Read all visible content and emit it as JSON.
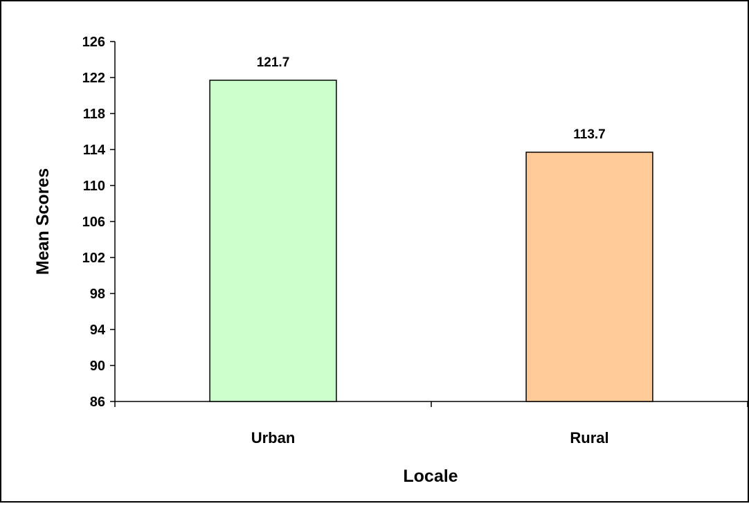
{
  "chart_data": {
    "type": "bar",
    "title": "",
    "xlabel": "Locale",
    "ylabel": "Mean Scores",
    "categories": [
      "Urban",
      "Rural"
    ],
    "values": [
      121.7,
      113.7
    ],
    "data_labels": [
      "121.7",
      "113.7"
    ],
    "colors": [
      "#ccffcc",
      "#ffcc99"
    ],
    "ylim": [
      86,
      126
    ],
    "yticks": [
      86,
      90,
      94,
      98,
      102,
      106,
      110,
      114,
      118,
      122,
      126
    ],
    "grid": false,
    "legend": "none"
  }
}
